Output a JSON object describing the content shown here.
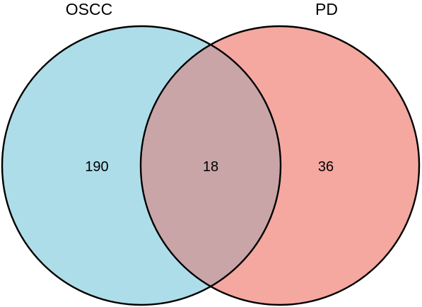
{
  "diagram": {
    "type": "venn",
    "sets": [
      {
        "id": "left",
        "name": "OSCC",
        "fill": "#ADDDE8",
        "stroke": "#000000"
      },
      {
        "id": "right",
        "name": "PD",
        "fill": "#F4A8A0",
        "stroke": "#000000"
      }
    ],
    "regions": {
      "left_only": "190",
      "overlap": "18",
      "right_only": "36"
    },
    "overlap_fill": "#C9A5A8"
  }
}
